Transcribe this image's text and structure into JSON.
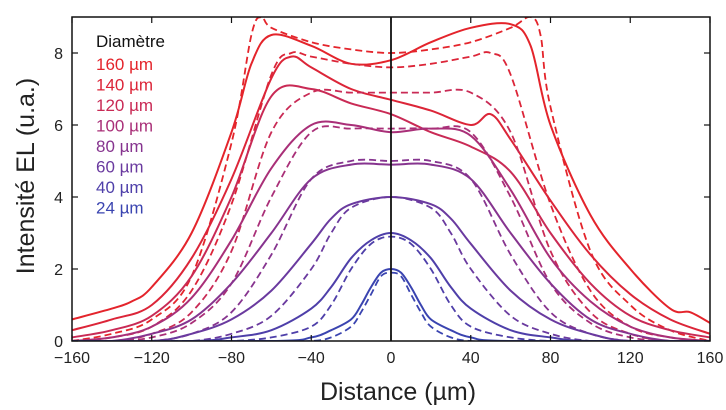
{
  "chart_data": {
    "type": "line",
    "xlabel": "Distance (µm)",
    "ylabel": "Intensité EL (u.a.)",
    "xlim": [
      -160,
      160
    ],
    "ylim": [
      0,
      9
    ],
    "xticks": [
      "−160",
      "−120",
      "−80",
      "−40",
      "0",
      "40",
      "80",
      "120",
      "160"
    ],
    "xtick_values": [
      -160,
      -120,
      -80,
      -40,
      0,
      40,
      80,
      120,
      160
    ],
    "yticks": [
      "0",
      "2",
      "4",
      "6",
      "8"
    ],
    "ytick_values": [
      0,
      2,
      4,
      6,
      8
    ],
    "grid": false,
    "legend_title": "Diamètre",
    "legend_position": "top-left",
    "vertical_reference_line_x": 0,
    "series": [
      {
        "name": "160 µm",
        "color": "#e4242b",
        "measured": {
          "x": [
            -160,
            -140,
            -130,
            -120,
            -100,
            -80,
            -70,
            -60,
            -40,
            -20,
            0,
            20,
            40,
            60,
            70,
            80,
            100,
            120,
            140,
            150,
            160
          ],
          "y": [
            0.6,
            0.9,
            1.1,
            1.5,
            3.0,
            5.8,
            7.7,
            8.5,
            8.2,
            7.7,
            7.8,
            8.3,
            8.7,
            8.8,
            8.2,
            6.0,
            3.5,
            2.0,
            0.9,
            0.8,
            0.5
          ]
        },
        "simulated": {
          "x": [
            -160,
            -140,
            -120,
            -100,
            -80,
            -70,
            -65,
            -60,
            -40,
            -20,
            0,
            20,
            40,
            60,
            70,
            75,
            80,
            100,
            120,
            140,
            160
          ],
          "y": [
            0.0,
            0.2,
            0.6,
            1.8,
            5.5,
            8.5,
            9.0,
            8.7,
            8.3,
            8.1,
            8.0,
            8.1,
            8.3,
            8.7,
            9.0,
            8.5,
            6.5,
            2.5,
            1.0,
            0.3,
            0.0
          ]
        }
      },
      {
        "name": "140 µm",
        "color": "#dc2538",
        "measured": {
          "x": [
            -160,
            -140,
            -120,
            -100,
            -80,
            -60,
            -50,
            -40,
            -20,
            0,
            20,
            40,
            50,
            60,
            80,
            100,
            120,
            140,
            160
          ],
          "y": [
            0.3,
            0.6,
            1.0,
            2.3,
            4.5,
            7.3,
            7.9,
            7.6,
            7.0,
            6.7,
            6.4,
            6.0,
            6.3,
            5.6,
            3.9,
            2.4,
            1.3,
            0.6,
            0.2
          ]
        },
        "simulated": {
          "x": [
            -160,
            -140,
            -120,
            -100,
            -80,
            -60,
            -50,
            -40,
            -20,
            0,
            20,
            40,
            50,
            60,
            80,
            100,
            120,
            140,
            160
          ],
          "y": [
            0.0,
            0.1,
            0.4,
            1.4,
            3.8,
            7.4,
            8.0,
            7.9,
            7.7,
            7.6,
            7.7,
            7.9,
            8.0,
            7.4,
            3.8,
            1.4,
            0.4,
            0.1,
            0.0
          ]
        }
      },
      {
        "name": "120 µm",
        "color": "#c92a55",
        "measured": {
          "x": [
            -160,
            -140,
            -120,
            -100,
            -80,
            -60,
            -40,
            -20,
            0,
            20,
            40,
            60,
            80,
            100,
            120,
            140,
            160
          ],
          "y": [
            0.1,
            0.3,
            0.7,
            1.8,
            4.0,
            6.8,
            7.0,
            6.6,
            6.3,
            5.8,
            5.4,
            4.7,
            3.0,
            1.6,
            0.7,
            0.3,
            0.1
          ]
        },
        "simulated": {
          "x": [
            -160,
            -140,
            -120,
            -100,
            -80,
            -60,
            -40,
            -20,
            0,
            20,
            40,
            60,
            80,
            100,
            120,
            140,
            160
          ],
          "y": [
            0.0,
            0.0,
            0.2,
            0.8,
            2.5,
            5.8,
            6.9,
            6.9,
            6.9,
            6.9,
            6.9,
            5.8,
            2.5,
            0.8,
            0.2,
            0.0,
            0.0
          ]
        }
      },
      {
        "name": "100 µm",
        "color": "#a92f78",
        "measured": {
          "x": [
            -160,
            -140,
            -120,
            -100,
            -80,
            -60,
            -40,
            -20,
            0,
            20,
            40,
            60,
            80,
            100,
            120,
            140,
            160
          ],
          "y": [
            0.0,
            0.1,
            0.4,
            1.2,
            2.8,
            4.8,
            6.0,
            6.0,
            5.8,
            5.9,
            5.7,
            4.2,
            2.3,
            1.1,
            0.4,
            0.1,
            0.0
          ]
        },
        "simulated": {
          "x": [
            -160,
            -140,
            -120,
            -100,
            -80,
            -60,
            -40,
            -20,
            0,
            20,
            40,
            60,
            80,
            100,
            120,
            140,
            160
          ],
          "y": [
            0.0,
            0.0,
            0.1,
            0.5,
            1.6,
            4.0,
            5.8,
            5.9,
            5.9,
            5.9,
            5.8,
            4.0,
            1.6,
            0.5,
            0.1,
            0.0,
            0.0
          ]
        }
      },
      {
        "name": "80 µm",
        "color": "#86348f",
        "measured": {
          "x": [
            -160,
            -140,
            -120,
            -100,
            -80,
            -60,
            -40,
            -20,
            0,
            20,
            40,
            60,
            80,
            100,
            120,
            140,
            160
          ],
          "y": [
            0.0,
            0.0,
            0.2,
            0.6,
            1.6,
            3.0,
            4.5,
            4.9,
            4.9,
            4.9,
            4.5,
            3.0,
            1.6,
            0.6,
            0.2,
            0.0,
            0.0
          ]
        },
        "simulated": {
          "x": [
            -160,
            -140,
            -120,
            -100,
            -80,
            -60,
            -40,
            -20,
            0,
            20,
            40,
            60,
            80,
            100,
            120,
            140,
            160
          ],
          "y": [
            0.0,
            0.0,
            0.0,
            0.2,
            0.8,
            2.4,
            4.5,
            5.0,
            5.0,
            5.0,
            4.5,
            2.4,
            0.8,
            0.2,
            0.0,
            0.0,
            0.0
          ]
        }
      },
      {
        "name": "60 µm",
        "color": "#6a3a9f",
        "measured": {
          "x": [
            -160,
            -120,
            -100,
            -80,
            -60,
            -40,
            -30,
            -20,
            0,
            20,
            30,
            40,
            60,
            80,
            100,
            120,
            160
          ],
          "y": [
            0.0,
            0.0,
            0.2,
            0.6,
            1.4,
            2.7,
            3.4,
            3.8,
            4.0,
            3.8,
            3.4,
            2.7,
            1.4,
            0.6,
            0.2,
            0.0,
            0.0
          ]
        },
        "simulated": {
          "x": [
            -160,
            -120,
            -100,
            -80,
            -60,
            -40,
            -30,
            -20,
            0,
            20,
            30,
            40,
            60,
            80,
            100,
            120,
            160
          ],
          "y": [
            0.0,
            0.0,
            0.0,
            0.2,
            0.7,
            2.0,
            3.0,
            3.7,
            4.0,
            3.7,
            3.0,
            2.0,
            0.7,
            0.2,
            0.0,
            0.0,
            0.0
          ]
        }
      },
      {
        "name": "40 µm",
        "color": "#4e3fa9",
        "measured": {
          "x": [
            -160,
            -100,
            -80,
            -60,
            -40,
            -30,
            -20,
            -10,
            0,
            10,
            20,
            30,
            40,
            60,
            80,
            100,
            160
          ],
          "y": [
            0.0,
            0.0,
            0.1,
            0.3,
            0.9,
            1.5,
            2.3,
            2.8,
            3.0,
            2.8,
            2.3,
            1.5,
            0.9,
            0.3,
            0.1,
            0.0,
            0.0
          ]
        },
        "simulated": {
          "x": [
            -160,
            -100,
            -80,
            -60,
            -40,
            -30,
            -20,
            -10,
            0,
            10,
            20,
            30,
            40,
            60,
            80,
            100,
            160
          ],
          "y": [
            0.0,
            0.0,
            0.0,
            0.1,
            0.4,
            1.0,
            2.0,
            2.7,
            2.9,
            2.7,
            2.0,
            1.0,
            0.4,
            0.1,
            0.0,
            0.0,
            0.0
          ]
        }
      },
      {
        "name": "24 µm",
        "color": "#3a44b0",
        "measured": {
          "x": [
            -160,
            -60,
            -40,
            -30,
            -20,
            -15,
            -10,
            -5,
            0,
            5,
            10,
            15,
            20,
            30,
            40,
            60,
            160
          ],
          "y": [
            0.0,
            0.0,
            0.1,
            0.3,
            0.6,
            1.0,
            1.5,
            1.9,
            2.0,
            1.9,
            1.5,
            1.0,
            0.6,
            0.3,
            0.1,
            0.0,
            0.0
          ]
        },
        "simulated": {
          "x": [
            -160,
            -60,
            -40,
            -30,
            -20,
            -15,
            -10,
            -5,
            0,
            5,
            10,
            15,
            20,
            30,
            40,
            60,
            160
          ],
          "y": [
            0.0,
            0.0,
            0.0,
            0.1,
            0.4,
            0.8,
            1.3,
            1.8,
            1.9,
            1.8,
            1.3,
            0.8,
            0.4,
            0.1,
            0.0,
            0.0,
            0.0
          ]
        }
      }
    ]
  }
}
